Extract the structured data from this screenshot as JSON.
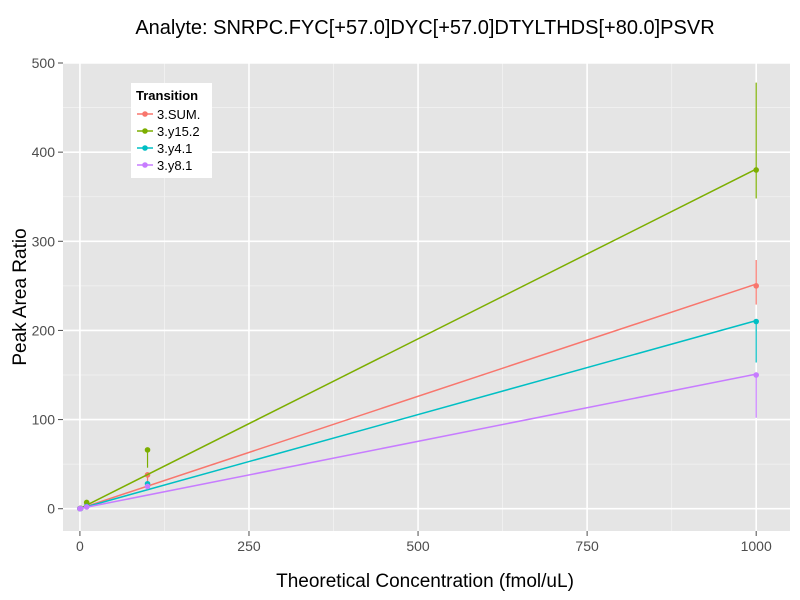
{
  "chart_data": {
    "type": "line",
    "title": "Analyte: SNRPC.FYC[+57.0]DYC[+57.0]DTYLTHDS[+80.0]PSVR",
    "xlabel": "Theoretical Concentration (fmol/uL)",
    "ylabel": "Peak Area Ratio",
    "xlim": [
      -25,
      1050
    ],
    "ylim": [
      -25,
      500
    ],
    "x_ticks": [
      0,
      250,
      500,
      750,
      1000
    ],
    "y_ticks": [
      0,
      100,
      200,
      300,
      400,
      500
    ],
    "grid": true,
    "legend": {
      "title": "Transition",
      "position": "top-left"
    },
    "x": [
      0,
      1,
      10,
      100,
      1000
    ],
    "series": [
      {
        "name": "3.SUM.",
        "color": "#F8766D",
        "values": [
          0.1,
          0.3,
          3.0,
          38.0,
          250.0
        ],
        "err_low": [
          0,
          0,
          2,
          28,
          229
        ],
        "err_high": [
          0.2,
          0.5,
          4,
          40,
          279
        ],
        "fit": [
          [
            0,
            0.2
          ],
          [
            1000,
            252
          ]
        ]
      },
      {
        "name": "3.y15.2",
        "color": "#7CAE00",
        "values": [
          0.2,
          0.5,
          7.0,
          66.0,
          380.0
        ],
        "err_low": [
          0,
          0,
          6,
          46,
          348
        ],
        "err_high": [
          0.4,
          1,
          8,
          67,
          478
        ],
        "fit": [
          [
            0,
            0.2
          ],
          [
            1000,
            381
          ]
        ]
      },
      {
        "name": "3.y4.1",
        "color": "#00BFC4",
        "values": [
          0.1,
          0.2,
          2.5,
          28.0,
          210.0
        ],
        "err_low": [
          0,
          0,
          2,
          25,
          164
        ],
        "err_high": [
          0.2,
          0.4,
          3,
          30,
          210
        ],
        "fit": [
          [
            0,
            0.2
          ],
          [
            1000,
            211
          ]
        ]
      },
      {
        "name": "3.y8.1",
        "color": "#C77CFF",
        "values": [
          0.1,
          0.2,
          2.0,
          25.0,
          150.0
        ],
        "err_low": [
          0,
          0,
          1.5,
          22,
          102
        ],
        "err_high": [
          0.2,
          0.4,
          2.5,
          26,
          153
        ],
        "fit": [
          [
            0,
            0.2
          ],
          [
            1000,
            151
          ]
        ]
      }
    ]
  }
}
